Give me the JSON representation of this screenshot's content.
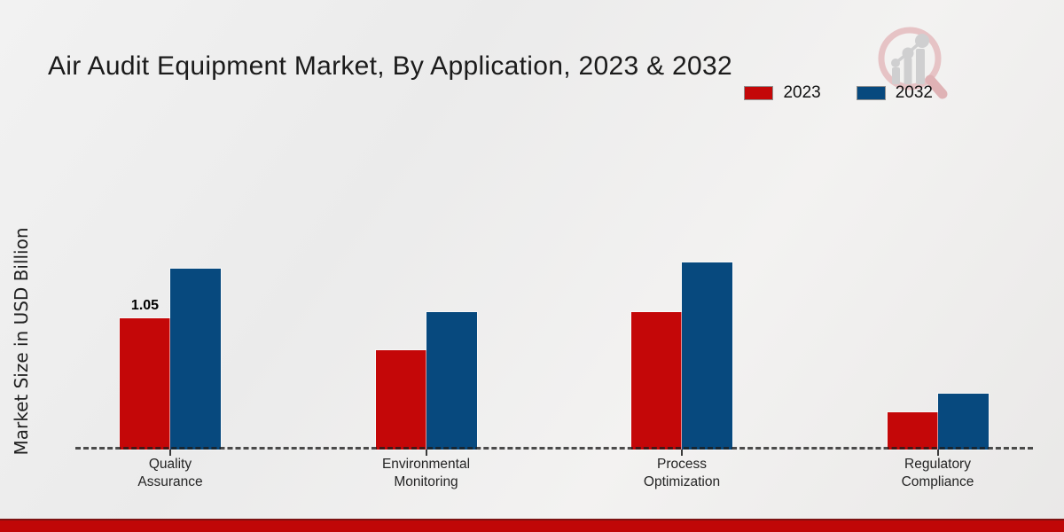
{
  "title": "Air Audit Equipment Market, By Application, 2023 & 2032",
  "ylabel": "Market Size in USD Billion",
  "colors": {
    "series_2023": "#c40708",
    "series_2032": "#07497e",
    "footer_stripe": "#c00707",
    "axis_dash": "#1c1c1c"
  },
  "legend": {
    "items": [
      {
        "label": "2023",
        "color": "#c40708"
      },
      {
        "label": "2032",
        "color": "#07497e"
      }
    ]
  },
  "chart_data": {
    "type": "bar",
    "title": "Air Audit Equipment Market, By Application, 2023 & 2032",
    "xlabel": "",
    "ylabel": "Market Size in USD Billion",
    "categories": [
      [
        "Quality",
        "Assurance"
      ],
      [
        "Environmental",
        "Monitoring"
      ],
      [
        "Process",
        "Optimization"
      ],
      [
        "Regulatory",
        "Compliance"
      ]
    ],
    "series": [
      {
        "name": "2023",
        "color": "#c40708",
        "values": [
          1.05,
          0.8,
          1.1,
          0.3
        ],
        "value_labels": [
          "1.05",
          "",
          "",
          ""
        ]
      },
      {
        "name": "2032",
        "color": "#07497e",
        "values": [
          1.45,
          1.1,
          1.5,
          0.45
        ],
        "value_labels": [
          "",
          "",
          "",
          ""
        ]
      }
    ],
    "ylim": [
      0,
      1.6
    ],
    "grid": false,
    "legend_position": "top-right",
    "baseline_style": "dashed"
  }
}
